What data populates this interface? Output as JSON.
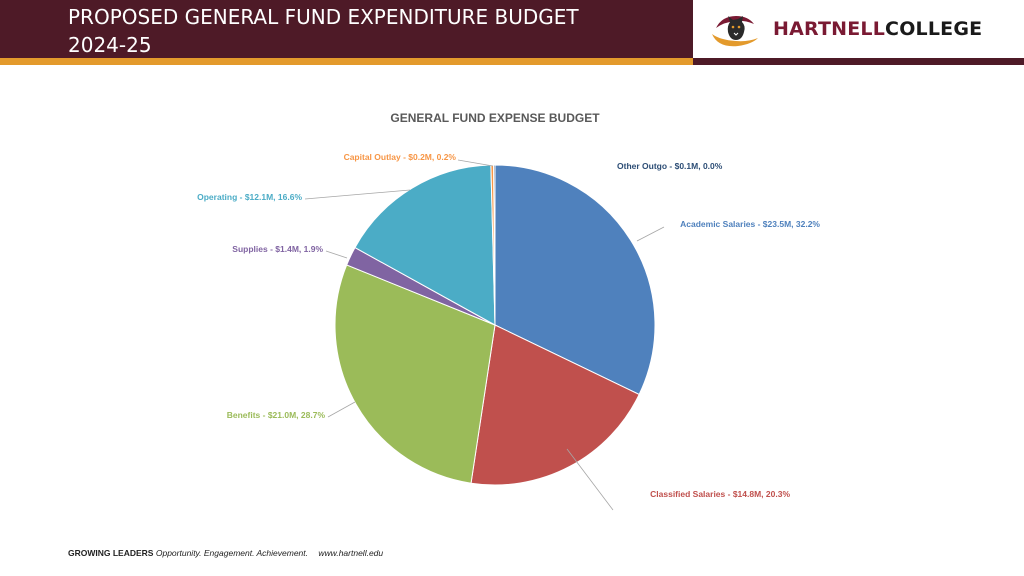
{
  "header": {
    "title_line1": "PROPOSED GENERAL FUND EXPENDITURE BUDGET",
    "title_line2": "2024-25",
    "logo_part1": "HARTNELL",
    "logo_part2": "COLLEGE"
  },
  "colors": {
    "header_bg": "#4e1a27",
    "accent_gold": "#e39a2c"
  },
  "chart_data": {
    "type": "pie",
    "title": "GENERAL FUND EXPENSE BUDGET",
    "slices": [
      {
        "name": "Academic Salaries",
        "value": 23.5,
        "percent": 32.2,
        "label": "Academic Salaries - $23.5M, 32.2%",
        "color": "#4f81bd"
      },
      {
        "name": "Classified Salaries",
        "value": 14.8,
        "percent": 20.3,
        "label": "Classified Salaries - $14.8M, 20.3%",
        "color": "#c0504d"
      },
      {
        "name": "Benefits",
        "value": 21.0,
        "percent": 28.7,
        "label": "Benefits - $21.0M, 28.7%",
        "color": "#9bbb59"
      },
      {
        "name": "Supplies",
        "value": 1.4,
        "percent": 1.9,
        "label": "Supplies - $1.4M, 1.9%",
        "color": "#8064a2"
      },
      {
        "name": "Operating",
        "value": 12.1,
        "percent": 16.6,
        "label": "Operating - $12.1M, 16.6%",
        "color": "#4bacc6"
      },
      {
        "name": "Capital Outlay",
        "value": 0.2,
        "percent": 0.2,
        "label": "Capital Outlay - $0.2M, 0.2%",
        "color": "#f79646"
      },
      {
        "name": "Other Outgo",
        "value": 0.1,
        "percent": 0.0,
        "label": "Other Outgo - $0.1M, 0.0%",
        "color": "#2c4d75"
      }
    ]
  },
  "footer": {
    "bold": "GROWING LEADERS",
    "tagline": "Opportunity. Engagement. Achievement.",
    "url": "www.hartnell.edu"
  }
}
